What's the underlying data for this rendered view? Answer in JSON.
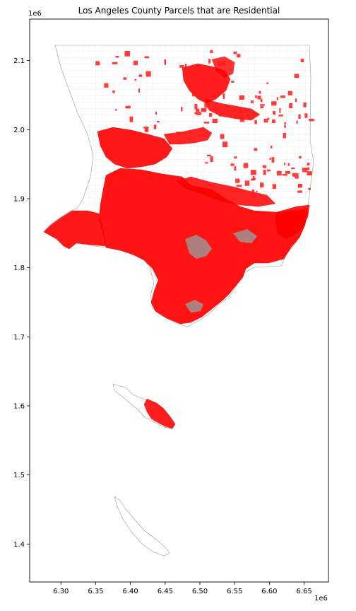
{
  "chart_data": {
    "type": "map",
    "title": "Los Angeles County Parcels that are Residential",
    "x_axis": {
      "multiplier": "1e6",
      "range": [
        6.255,
        6.685
      ],
      "ticks": [
        6.3,
        6.35,
        6.4,
        6.45,
        6.5,
        6.55,
        6.6,
        6.65
      ],
      "tick_labels": [
        "6.30",
        "6.35",
        "6.40",
        "6.45",
        "6.50",
        "6.55",
        "6.60",
        "6.65"
      ]
    },
    "y_axis": {
      "multiplier": "1e6",
      "range": [
        1.345,
        2.16
      ],
      "ticks": [
        1.4,
        1.5,
        1.6,
        1.7,
        1.8,
        1.9,
        2.0,
        2.1
      ],
      "tick_labels": [
        "1.4",
        "1.5",
        "1.6",
        "1.7",
        "1.8",
        "1.9",
        "2.0",
        "2.1"
      ]
    },
    "grid": false,
    "colors": {
      "residential": "#ff0000",
      "parcel_outline": "#555555",
      "dense_urban": "#8a8a8a"
    }
  }
}
